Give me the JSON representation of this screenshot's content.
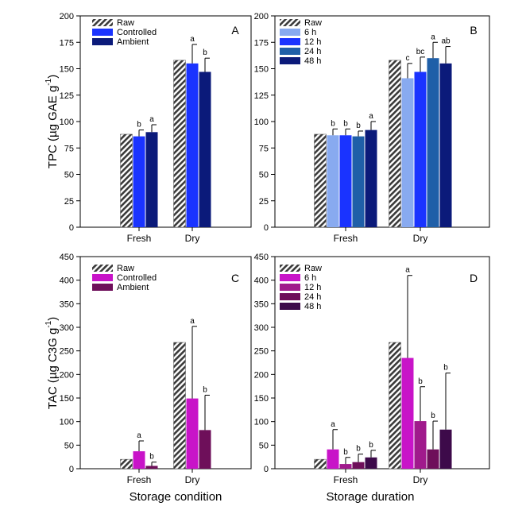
{
  "figure": {
    "xlabel_left": "Storage condition",
    "xlabel_right": "Storage duration",
    "ylabel_top": "TPC (µg GAE g",
    "ylabel_bottom": "TAC (µg C3G g",
    "ylabel_sup": "-1",
    "ylabel_close": ")"
  },
  "chart_data": [
    {
      "id": "A",
      "panel_label": "A",
      "type": "bar",
      "ylabel": "TPC (µg GAE g-1)",
      "xlabel": "Storage condition",
      "ylim": [
        0,
        200
      ],
      "yticks": [
        0,
        25,
        50,
        75,
        100,
        125,
        150,
        175,
        200
      ],
      "categories": [
        "Fresh",
        "Dry"
      ],
      "series": [
        {
          "name": "Raw",
          "color": "#444444",
          "pattern": "hatch",
          "values": [
            88,
            158
          ],
          "errors": [
            0,
            0
          ],
          "letters": [
            "",
            ""
          ]
        },
        {
          "name": "Controlled",
          "color": "#1a33ff",
          "values": [
            86,
            155
          ],
          "errors": [
            6,
            18
          ],
          "letters": [
            "b",
            "a"
          ]
        },
        {
          "name": "Ambient",
          "color": "#0b1a7a",
          "values": [
            90,
            147
          ],
          "errors": [
            7,
            13
          ],
          "letters": [
            "a",
            "b"
          ]
        }
      ]
    },
    {
      "id": "B",
      "panel_label": "B",
      "type": "bar",
      "ylabel": "TPC (µg GAE g-1)",
      "xlabel": "Storage duration",
      "ylim": [
        0,
        200
      ],
      "yticks": [
        0,
        25,
        50,
        75,
        100,
        125,
        150,
        175,
        200
      ],
      "categories": [
        "Fresh",
        "Dry"
      ],
      "series": [
        {
          "name": "Raw",
          "color": "#444444",
          "pattern": "hatch",
          "values": [
            88,
            158
          ],
          "errors": [
            0,
            0
          ],
          "letters": [
            "",
            ""
          ]
        },
        {
          "name": "6 h",
          "color": "#88aaf0",
          "values": [
            87,
            141
          ],
          "errors": [
            6,
            14
          ],
          "letters": [
            "b",
            "c"
          ]
        },
        {
          "name": "12 h",
          "color": "#1a33ff",
          "values": [
            87,
            147
          ],
          "errors": [
            6,
            14
          ],
          "letters": [
            "b",
            "bc"
          ]
        },
        {
          "name": "24 h",
          "color": "#1f5fa8",
          "values": [
            86,
            160
          ],
          "errors": [
            5,
            15
          ],
          "letters": [
            "b",
            "a"
          ]
        },
        {
          "name": "48 h",
          "color": "#0b1a7a",
          "values": [
            92,
            155
          ],
          "errors": [
            8,
            16
          ],
          "letters": [
            "a",
            "ab"
          ]
        }
      ]
    },
    {
      "id": "C",
      "panel_label": "C",
      "type": "bar",
      "ylabel": "TAC (µg C3G g-1)",
      "xlabel": "Storage condition",
      "ylim": [
        0,
        450
      ],
      "yticks": [
        0,
        50,
        100,
        150,
        200,
        250,
        300,
        350,
        400,
        450
      ],
      "categories": [
        "Fresh",
        "Dry"
      ],
      "series": [
        {
          "name": "Raw",
          "color": "#444444",
          "pattern": "hatch",
          "values": [
            20,
            268
          ],
          "errors": [
            0,
            0
          ],
          "letters": [
            "",
            ""
          ]
        },
        {
          "name": "Controlled",
          "color": "#c814c8",
          "values": [
            37,
            149
          ],
          "errors": [
            22,
            153
          ],
          "letters": [
            "a",
            "a"
          ]
        },
        {
          "name": "Ambient",
          "color": "#6e0f5a",
          "values": [
            6,
            82
          ],
          "errors": [
            8,
            74
          ],
          "letters": [
            "b",
            "b"
          ]
        }
      ]
    },
    {
      "id": "D",
      "panel_label": "D",
      "type": "bar",
      "ylabel": "TAC (µg C3G g-1)",
      "xlabel": "Storage duration",
      "ylim": [
        0,
        450
      ],
      "yticks": [
        0,
        50,
        100,
        150,
        200,
        250,
        300,
        350,
        400,
        450
      ],
      "categories": [
        "Fresh",
        "Dry"
      ],
      "series": [
        {
          "name": "Raw",
          "color": "#444444",
          "pattern": "hatch",
          "values": [
            20,
            268
          ],
          "errors": [
            0,
            0
          ],
          "letters": [
            "",
            ""
          ]
        },
        {
          "name": "6 h",
          "color": "#c814c8",
          "values": [
            41,
            235
          ],
          "errors": [
            42,
            175
          ],
          "letters": [
            "a",
            "a"
          ]
        },
        {
          "name": "12 h",
          "color": "#a01a8c",
          "values": [
            10,
            101
          ],
          "errors": [
            14,
            73
          ],
          "letters": [
            "b",
            "b"
          ]
        },
        {
          "name": "24 h",
          "color": "#6e0f5a",
          "values": [
            14,
            41
          ],
          "errors": [
            17,
            60
          ],
          "letters": [
            "b",
            "b"
          ]
        },
        {
          "name": "48 h",
          "color": "#3d0a4a",
          "values": [
            24,
            83
          ],
          "errors": [
            15,
            120
          ],
          "letters": [
            "b",
            "b"
          ]
        }
      ]
    }
  ]
}
